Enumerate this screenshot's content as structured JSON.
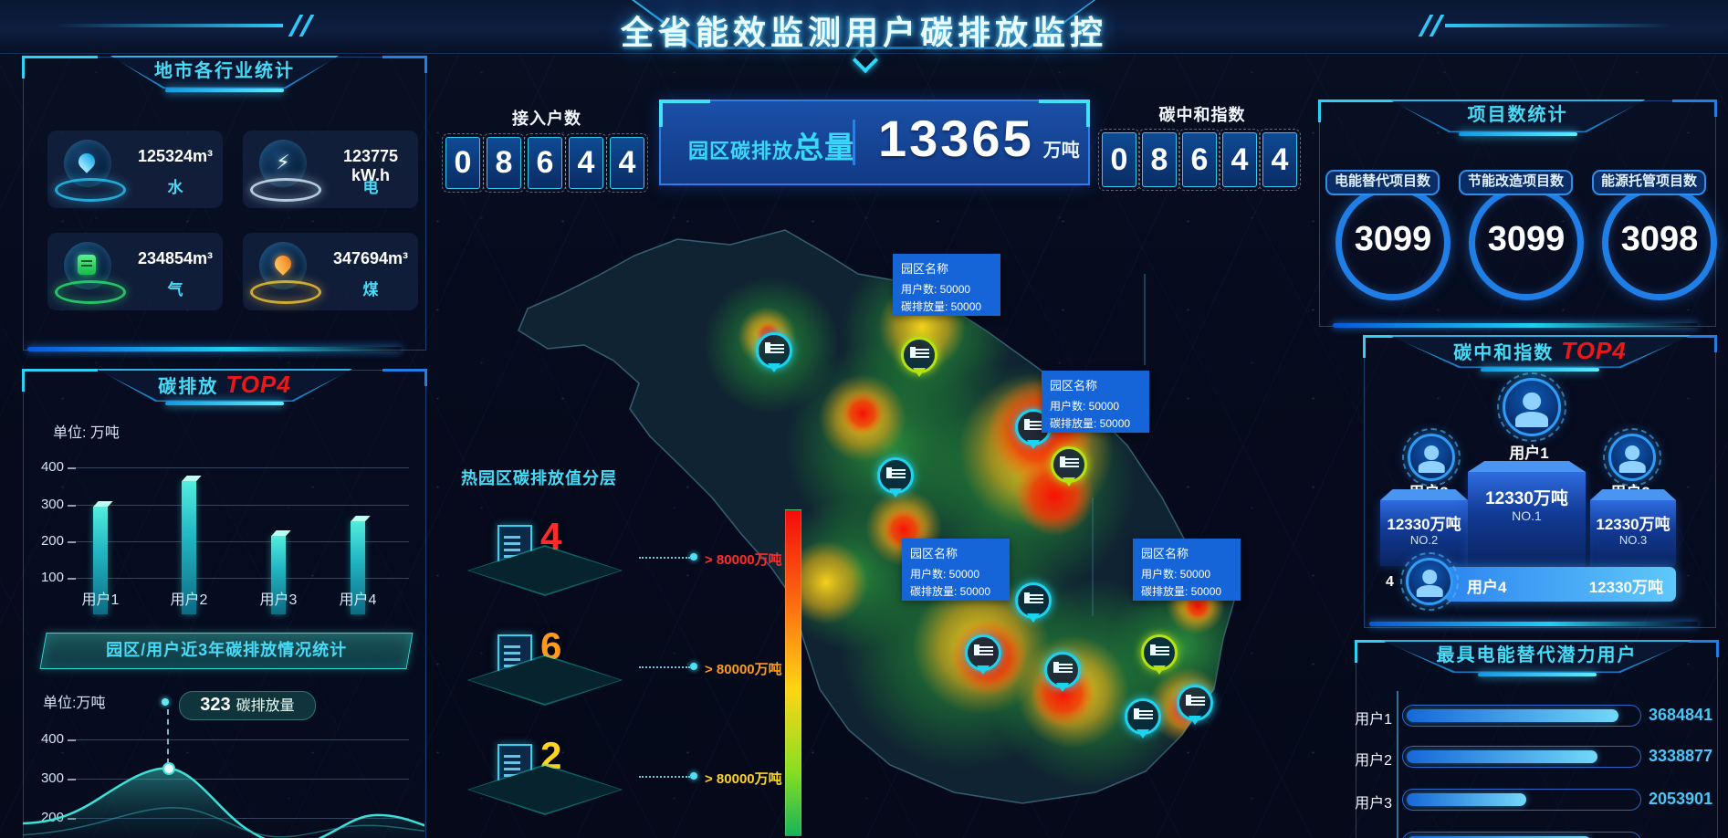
{
  "title_bar": {
    "title": "全省能效监测用户碳排放监控"
  },
  "left": {
    "industry": {
      "title": "地市各行业统计",
      "stats": [
        {
          "icon": "water-drop-icon",
          "value": "125324m³",
          "label": "水"
        },
        {
          "icon": "lightning-icon",
          "value": "123775 kW.h",
          "label": "电"
        },
        {
          "icon": "gas-icon",
          "value": "234854m³",
          "label": "气"
        },
        {
          "icon": "coal-flame-icon",
          "value": "347694m³",
          "label": "煤"
        }
      ]
    },
    "emission_top4": {
      "title": "碳排放",
      "highlight": "TOP4",
      "unit": "单位: 万吨",
      "chart": {
        "type": "bar",
        "categories": [
          "用户1",
          "用户2",
          "用户3",
          "用户4"
        ],
        "values": [
          295,
          365,
          215,
          255
        ],
        "yticks": [
          "400",
          "300",
          "200",
          "100"
        ],
        "ylim": [
          0,
          400
        ]
      }
    },
    "history_button": "园区/用户近3年碳排放情况统计",
    "trend": {
      "unit": "单位:万吨",
      "tooltip": {
        "value": "323",
        "label": "碳排放量"
      },
      "chart": {
        "type": "area",
        "yticks": [
          "400",
          "300",
          "200"
        ],
        "approx_values": [
          235,
          255,
          300,
          323,
          280,
          230,
          195,
          180,
          205,
          210,
          198
        ],
        "ylim": [
          150,
          450
        ]
      }
    }
  },
  "center": {
    "access": {
      "label": "接入户数",
      "digits": [
        "0",
        "8",
        "6",
        "4",
        "4"
      ]
    },
    "total": {
      "prefix": "园区碳排放",
      "strong": "总量",
      "value": "13365",
      "unit": "万吨"
    },
    "index": {
      "label": "碳中和指数",
      "digits": [
        "0",
        "8",
        "6",
        "4",
        "4"
      ]
    },
    "heat_legend": {
      "title": "热园区碳排放值分层",
      "layers": [
        {
          "count": "4",
          "threshold": "> 80000万吨",
          "color": "#ff2b2b"
        },
        {
          "count": "6",
          "threshold": "> 80000万吨",
          "color": "#ff9a1e"
        },
        {
          "count": "2",
          "threshold": "> 80000万吨",
          "color": "#ffd41e"
        }
      ]
    },
    "map": {
      "tooltips": [
        {
          "name": "园区名称",
          "users": "用户数: 50000",
          "emission": "碳排放量: 50000"
        },
        {
          "name": "园区名称",
          "users": "用户数: 50000",
          "emission": "碳排放量: 50000"
        },
        {
          "name": "园区名称",
          "users": "用户数: 50000",
          "emission": "碳排放量: 50000"
        },
        {
          "name": "园区名称",
          "users": "用户数: 50000",
          "emission": "碳排放量: 50000"
        }
      ]
    }
  },
  "right": {
    "projects": {
      "title": "项目数统计",
      "items": [
        {
          "label": "电能替代项目数",
          "value": "3099"
        },
        {
          "label": "节能改造项目数",
          "value": "3099"
        },
        {
          "label": "能源托管项目数",
          "value": "3098"
        }
      ]
    },
    "neutral_top4": {
      "title": "碳中和指数",
      "highlight": "TOP4",
      "podium": {
        "first": {
          "user": "用户1",
          "value": "12330万吨",
          "rank": "NO.1"
        },
        "second": {
          "user": "用户3",
          "value": "12330万吨",
          "rank": "NO.2"
        },
        "third": {
          "user": "用户2",
          "value": "12330万吨",
          "rank": "NO.3"
        }
      },
      "fourth": {
        "index": "4",
        "user": "用户4",
        "value": "12330万吨"
      }
    },
    "potential": {
      "title": "最具电能替代潜力用户",
      "rows": [
        {
          "label": "用户1",
          "value": "3684841",
          "pct": 92
        },
        {
          "label": "用户2",
          "value": "3338877",
          "pct": 83
        },
        {
          "label": "用户3",
          "value": "2053901",
          "pct": 52
        },
        {
          "label": "",
          "value": "",
          "pct": 80
        }
      ]
    }
  },
  "colors": {
    "accent_cyan": "#46dcf8",
    "accent_red": "#ec1717",
    "ring_blue": "#1f7fe6",
    "tooltip_blue": "#1565d8"
  }
}
